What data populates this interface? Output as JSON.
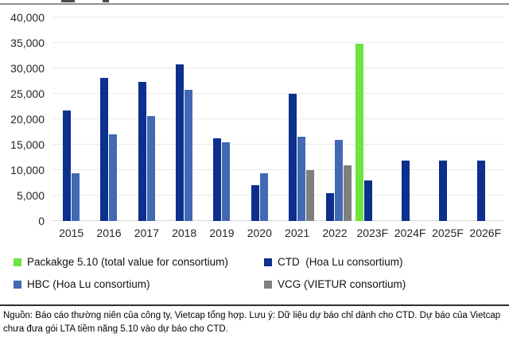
{
  "chart_data": {
    "type": "bar",
    "title": "",
    "categories": [
      "2015",
      "2016",
      "2017",
      "2018",
      "2019",
      "2020",
      "2021",
      "2022",
      "2023F",
      "2024F",
      "2025F",
      "2026F"
    ],
    "series": [
      {
        "name": "Packakge 5.10 (total value for consortium)",
        "color": "#6fe33e",
        "values": [
          0,
          0,
          0,
          0,
          0,
          0,
          0,
          0,
          34800,
          0,
          0,
          0
        ]
      },
      {
        "name": "CTD (Hoa Lu consortium)",
        "color": "#0d2f8d",
        "values": [
          21700,
          28100,
          27400,
          30800,
          16300,
          7000,
          25000,
          5400,
          7900,
          11900,
          11900,
          11900
        ]
      },
      {
        "name": "HBC (Hoa Lu consortium)",
        "color": "#4169b4",
        "values": [
          9400,
          17100,
          20600,
          25800,
          15400,
          9400,
          16500,
          15900,
          0,
          0,
          0,
          0
        ]
      },
      {
        "name": "VCG (VIETUR consortium)",
        "color": "#7f7f7f",
        "values": [
          0,
          0,
          0,
          0,
          0,
          0,
          10000,
          11000,
          0,
          0,
          0,
          0
        ]
      }
    ],
    "ylim": [
      0,
      40000
    ],
    "ytick_step": 5000,
    "grid": true,
    "legend_position": "bottom"
  },
  "legend": {
    "items": [
      {
        "label": "Packakge 5.10 (total value for consortium)",
        "color": "#6fe33e"
      },
      {
        "label": "CTD  (Hoa Lu consortium)",
        "color": "#0d2f8d"
      },
      {
        "label": "HBC (Hoa Lu consortium)",
        "color": "#4169b4"
      },
      {
        "label": "VCG (VIETUR consortium)",
        "color": "#7f7f7f"
      }
    ]
  },
  "footer": {
    "note": "Nguồn: Báo cáo thường niên của công ty, Vietcap tổng hợp. Lưu ý: Dữ liệu dự báo chỉ dành cho CTD. Dự báo của Vietcap chưa đưa gói LTA tiềm năng 5.10 vào dự báo cho CTD."
  }
}
